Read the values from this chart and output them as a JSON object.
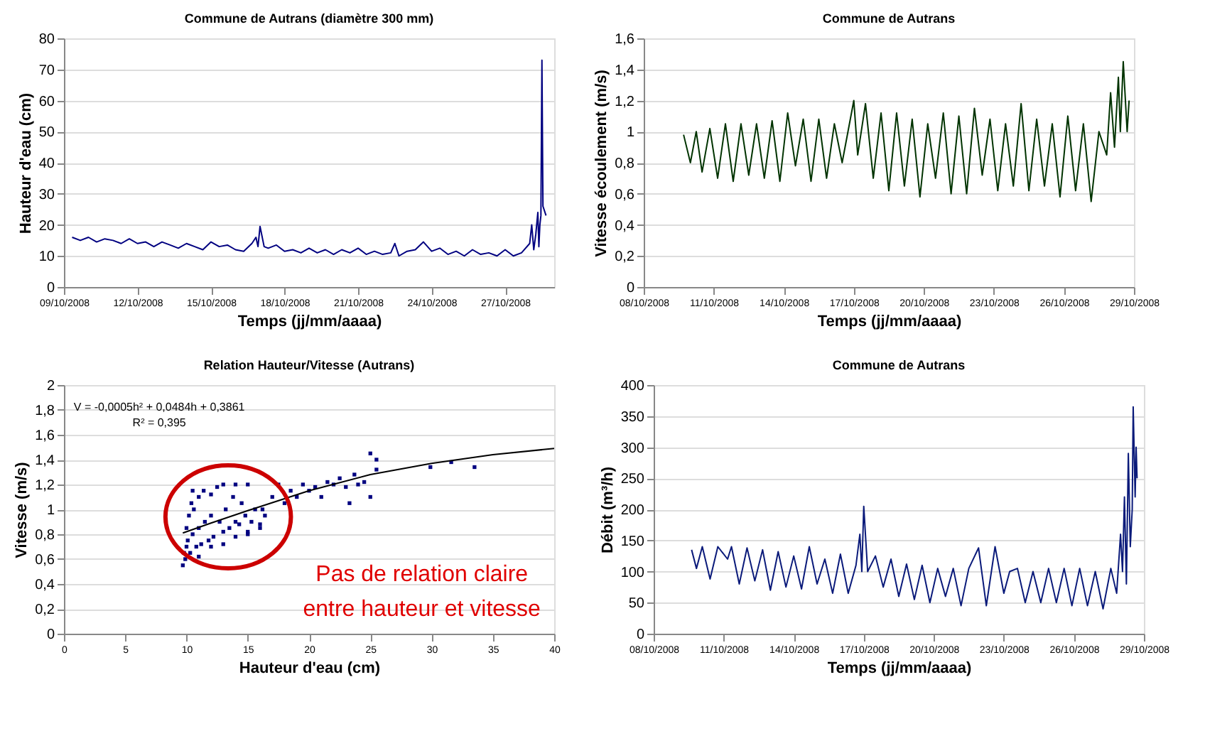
{
  "chart_data": [
    {
      "type": "line",
      "title": "Commune de Autrans (diamètre 300 mm)",
      "xlabel": "Temps (jj/mm/aaaa)",
      "ylabel": "Hauteur d'eau (cm)",
      "color": "#000080",
      "grid": "y",
      "xlim": [
        "2008-10-09",
        "2008-10-29"
      ],
      "xticks": [
        {
          "value": "2008-10-09",
          "label": "09/10/2008"
        },
        {
          "value": "2008-10-12",
          "label": "12/10/2008"
        },
        {
          "value": "2008-10-15",
          "label": "15/10/2008"
        },
        {
          "value": "2008-10-18",
          "label": "18/10/2008"
        },
        {
          "value": "2008-10-21",
          "label": "21/10/2008"
        },
        {
          "value": "2008-10-24",
          "label": "24/10/2008"
        },
        {
          "value": "2008-10-27",
          "label": "27/10/2008"
        }
      ],
      "ylim": [
        0,
        80
      ],
      "yticks": [
        0,
        10,
        20,
        30,
        40,
        50,
        60,
        70,
        80
      ],
      "x": [
        "2008-10-09T08:00",
        "2008-10-09T16:00",
        "2008-10-10T00:00",
        "2008-10-10T08:00",
        "2008-10-10T16:00",
        "2008-10-11T00:00",
        "2008-10-11T08:00",
        "2008-10-11T16:00",
        "2008-10-12T00:00",
        "2008-10-12T08:00",
        "2008-10-12T16:00",
        "2008-10-13T00:00",
        "2008-10-13T08:00",
        "2008-10-13T16:00",
        "2008-10-14T00:00",
        "2008-10-14T08:00",
        "2008-10-14T16:00",
        "2008-10-15T00:00",
        "2008-10-15T08:00",
        "2008-10-15T16:00",
        "2008-10-16T00:00",
        "2008-10-16T08:00",
        "2008-10-16T16:00",
        "2008-10-16T20:00",
        "2008-10-16T22:00",
        "2008-10-17T00:00",
        "2008-10-17T04:00",
        "2008-10-17T08:00",
        "2008-10-17T16:00",
        "2008-10-18T00:00",
        "2008-10-18T08:00",
        "2008-10-18T16:00",
        "2008-10-19T00:00",
        "2008-10-19T08:00",
        "2008-10-19T16:00",
        "2008-10-20T00:00",
        "2008-10-20T08:00",
        "2008-10-20T16:00",
        "2008-10-21T00:00",
        "2008-10-21T08:00",
        "2008-10-21T16:00",
        "2008-10-22T00:00",
        "2008-10-22T08:00",
        "2008-10-22T12:00",
        "2008-10-22T16:00",
        "2008-10-23T00:00",
        "2008-10-23T08:00",
        "2008-10-23T16:00",
        "2008-10-24T00:00",
        "2008-10-24T08:00",
        "2008-10-24T16:00",
        "2008-10-25T00:00",
        "2008-10-25T08:00",
        "2008-10-25T16:00",
        "2008-10-26T00:00",
        "2008-10-26T08:00",
        "2008-10-26T16:00",
        "2008-10-27T00:00",
        "2008-10-27T08:00",
        "2008-10-27T16:00",
        "2008-10-28T00:00",
        "2008-10-28T02:00",
        "2008-10-28T04:00",
        "2008-10-28T06:00",
        "2008-10-28T08:00",
        "2008-10-28T09:00",
        "2008-10-28T10:00",
        "2008-10-28T11:00",
        "2008-10-28T12:00",
        "2008-10-28T13:00",
        "2008-10-28T16:00"
      ],
      "values": [
        16,
        15,
        16,
        14.5,
        15.5,
        15,
        14,
        15.5,
        14,
        14.5,
        13,
        14.5,
        13.5,
        12.5,
        14,
        13,
        12,
        14.5,
        13,
        13.5,
        12,
        11.5,
        14,
        16,
        13,
        19.5,
        13,
        12.5,
        13.5,
        11.5,
        12,
        11,
        12.5,
        11,
        12,
        10.5,
        12,
        11,
        12.5,
        10.5,
        11.5,
        10.5,
        11,
        14,
        10,
        11.5,
        12,
        14.5,
        11.5,
        12.5,
        10.5,
        11.5,
        10,
        12,
        10.5,
        11,
        10,
        12,
        10,
        11,
        14,
        20,
        12,
        17,
        24,
        13,
        20,
        23,
        73,
        26,
        23
      ]
    },
    {
      "type": "line",
      "title": "Commune de Autrans",
      "xlabel": "Temps (jj/mm/aaaa)",
      "ylabel": "Vitesse écoulement (m/s)",
      "color": "#003300",
      "grid": "y",
      "xlim": [
        "2008-10-08",
        "2008-10-29"
      ],
      "xticks": [
        {
          "value": "2008-10-08",
          "label": "08/10/2008"
        },
        {
          "value": "2008-10-11",
          "label": "11/10/2008"
        },
        {
          "value": "2008-10-14",
          "label": "14/10/2008"
        },
        {
          "value": "2008-10-17",
          "label": "17/10/2008"
        },
        {
          "value": "2008-10-20",
          "label": "20/10/2008"
        },
        {
          "value": "2008-10-23",
          "label": "23/10/2008"
        },
        {
          "value": "2008-10-26",
          "label": "26/10/2008"
        },
        {
          "value": "2008-10-29",
          "label": "29/10/2008"
        }
      ],
      "ylim": [
        0,
        1.6
      ],
      "yticks": [
        0,
        {
          "value": 0.2,
          "label": "0,2"
        },
        {
          "value": 0.4,
          "label": "0,4"
        },
        {
          "value": 0.6,
          "label": "0,6"
        },
        {
          "value": 0.8,
          "label": "0,8"
        },
        1,
        {
          "value": 1.2,
          "label": "1,2"
        },
        {
          "value": 1.4,
          "label": "1,4"
        },
        {
          "value": 1.6,
          "label": "1,6"
        }
      ],
      "x": [
        "2008-10-09T17:00",
        "2008-10-10T00:00",
        "2008-10-10T06:00",
        "2008-10-10T12:00",
        "2008-10-10T20:00",
        "2008-10-11T04:00",
        "2008-10-11T12:00",
        "2008-10-11T20:00",
        "2008-10-12T04:00",
        "2008-10-12T12:00",
        "2008-10-12T20:00",
        "2008-10-13T04:00",
        "2008-10-13T12:00",
        "2008-10-13T20:00",
        "2008-10-14T04:00",
        "2008-10-14T12:00",
        "2008-10-14T20:00",
        "2008-10-15T04:00",
        "2008-10-15T12:00",
        "2008-10-15T20:00",
        "2008-10-16T04:00",
        "2008-10-16T12:00",
        "2008-10-17T00:00",
        "2008-10-17T04:00",
        "2008-10-17T12:00",
        "2008-10-17T20:00",
        "2008-10-18T04:00",
        "2008-10-18T12:00",
        "2008-10-18T20:00",
        "2008-10-19T04:00",
        "2008-10-19T12:00",
        "2008-10-19T20:00",
        "2008-10-20T04:00",
        "2008-10-20T12:00",
        "2008-10-20T20:00",
        "2008-10-21T04:00",
        "2008-10-21T12:00",
        "2008-10-21T20:00",
        "2008-10-22T04:00",
        "2008-10-22T12:00",
        "2008-10-22T20:00",
        "2008-10-23T04:00",
        "2008-10-23T12:00",
        "2008-10-23T20:00",
        "2008-10-24T04:00",
        "2008-10-24T12:00",
        "2008-10-24T20:00",
        "2008-10-25T04:00",
        "2008-10-25T12:00",
        "2008-10-25T20:00",
        "2008-10-26T04:00",
        "2008-10-26T12:00",
        "2008-10-26T20:00",
        "2008-10-27T04:00",
        "2008-10-27T12:00",
        "2008-10-27T20:00",
        "2008-10-28T00:00",
        "2008-10-28T04:00",
        "2008-10-28T08:00",
        "2008-10-28T10:00",
        "2008-10-28T13:00",
        "2008-10-28T17:00",
        "2008-10-28T19:00"
      ],
      "values": [
        0.98,
        0.8,
        1.0,
        0.74,
        1.02,
        0.7,
        1.05,
        0.68,
        1.05,
        0.72,
        1.05,
        0.7,
        1.07,
        0.68,
        1.12,
        0.78,
        1.08,
        0.68,
        1.08,
        0.7,
        1.05,
        0.8,
        1.2,
        0.85,
        1.18,
        0.7,
        1.12,
        0.62,
        1.12,
        0.65,
        1.08,
        0.58,
        1.05,
        0.7,
        1.12,
        0.6,
        1.1,
        0.6,
        1.15,
        0.72,
        1.08,
        0.62,
        1.05,
        0.65,
        1.18,
        0.62,
        1.08,
        0.65,
        1.05,
        0.58,
        1.1,
        0.62,
        1.05,
        0.55,
        1.0,
        0.85,
        1.25,
        0.9,
        1.35,
        1.0,
        1.45,
        1.0,
        1.2
      ]
    },
    {
      "type": "scatter",
      "title": "Relation Hauteur/Vitesse (Autrans)",
      "xlabel": "Hauteur d'eau (cm)",
      "ylabel": "Vitesse (m/s)",
      "grid": "y",
      "xlim": [
        0,
        40
      ],
      "xticks": [
        0,
        5,
        10,
        15,
        20,
        25,
        30,
        35,
        40
      ],
      "ylim": [
        0,
        2
      ],
      "yticks": [
        0,
        {
          "value": 0.2,
          "label": "0,2"
        },
        {
          "value": 0.4,
          "label": "0,4"
        },
        {
          "value": 0.6,
          "label": "0,6"
        },
        {
          "value": 0.8,
          "label": "0,8"
        },
        1,
        {
          "value": 1.2,
          "label": "1,2"
        },
        {
          "value": 1.4,
          "label": "1,4"
        },
        {
          "value": 1.6,
          "label": "1,6"
        },
        {
          "value": 1.8,
          "label": "1,8"
        },
        2
      ],
      "annotations": [
        "V = -0,0005h² + 0,0484h + 0,3861",
        "R² = 0,395",
        "Pas de relation claire",
        "entre  hauteur et vitesse"
      ],
      "series": [
        {
          "type": "scatter",
          "marker": "square",
          "color": "#000080",
          "x": [
            9.7,
            9.8,
            9.9,
            10,
            10,
            10.1,
            10.2,
            10.3,
            10.4,
            10.5,
            10.6,
            10.8,
            11,
            11,
            11.2,
            11.4,
            11.5,
            11.8,
            12,
            12,
            12.2,
            12.5,
            12.7,
            13,
            13,
            13.2,
            13.5,
            13.8,
            14,
            14,
            14.3,
            14.5,
            14.8,
            15,
            15,
            15.3,
            15.6,
            16,
            16.2,
            16.4,
            10.5,
            11,
            12,
            13,
            14,
            15,
            16,
            17,
            17.5,
            18,
            18.5,
            19,
            19.5,
            20,
            20.5,
            21,
            21.5,
            22,
            22.5,
            23,
            23.3,
            23.7,
            24,
            24.5,
            25,
            25,
            25.5,
            25.5,
            29.9,
            31.6,
            33.5
          ],
          "values": [
            0.55,
            0.65,
            0.6,
            0.7,
            0.85,
            0.75,
            0.95,
            0.65,
            1.05,
            0.8,
            1.0,
            0.7,
            1.1,
            0.85,
            0.72,
            1.15,
            0.9,
            0.75,
            1.12,
            0.95,
            0.78,
            1.18,
            0.9,
            0.82,
            1.2,
            1.0,
            0.85,
            1.1,
            0.9,
            1.2,
            0.88,
            1.05,
            0.95,
            0.82,
            1.2,
            0.9,
            1.0,
            0.88,
            1.0,
            0.95,
            1.15,
            0.62,
            0.7,
            0.72,
            0.78,
            0.8,
            0.85,
            1.1,
            1.2,
            1.05,
            1.15,
            1.1,
            1.2,
            1.15,
            1.18,
            1.1,
            1.22,
            1.2,
            1.25,
            1.18,
            1.05,
            1.28,
            1.2,
            1.22,
            1.45,
            1.1,
            1.4,
            1.32,
            1.34,
            1.38,
            1.34
          ]
        },
        {
          "type": "line",
          "color": "#000000",
          "x": [
            9.7,
            12,
            15,
            20,
            25,
            30,
            35,
            40
          ],
          "values": [
            0.81,
            0.89,
            0.99,
            1.15,
            1.28,
            1.37,
            1.44,
            1.49
          ]
        }
      ]
    },
    {
      "type": "line",
      "title": "Commune de Autrans",
      "xlabel": "Temps (jj/mm/aaaa)",
      "ylabel": "Débit (m³/h)",
      "color": "#0a1a7a",
      "grid": "y",
      "xlim": [
        "2008-10-08",
        "2008-10-29"
      ],
      "xticks": [
        {
          "value": "2008-10-08",
          "label": "08/10/2008"
        },
        {
          "value": "2008-10-11",
          "label": "11/10/2008"
        },
        {
          "value": "2008-10-14",
          "label": "14/10/2008"
        },
        {
          "value": "2008-10-17",
          "label": "17/10/2008"
        },
        {
          "value": "2008-10-20",
          "label": "20/10/2008"
        },
        {
          "value": "2008-10-23",
          "label": "23/10/2008"
        },
        {
          "value": "2008-10-26",
          "label": "26/10/2008"
        },
        {
          "value": "2008-10-29",
          "label": "29/10/2008"
        }
      ],
      "ylim": [
        0,
        400
      ],
      "yticks": [
        0,
        50,
        100,
        150,
        200,
        250,
        300,
        350,
        400
      ],
      "x": [
        "2008-10-09T15:00",
        "2008-10-09T20:00",
        "2008-10-10T02:00",
        "2008-10-10T10:00",
        "2008-10-10T18:00",
        "2008-10-11T04:00",
        "2008-10-11T08:00",
        "2008-10-11T16:00",
        "2008-10-12T00:00",
        "2008-10-12T08:00",
        "2008-10-12T16:00",
        "2008-10-13T00:00",
        "2008-10-13T08:00",
        "2008-10-13T16:00",
        "2008-10-14T00:00",
        "2008-10-14T08:00",
        "2008-10-14T16:00",
        "2008-10-15T00:00",
        "2008-10-15T08:00",
        "2008-10-15T16:00",
        "2008-10-16T00:00",
        "2008-10-16T08:00",
        "2008-10-16T16:00",
        "2008-10-16T20:00",
        "2008-10-16T22:00",
        "2008-10-17T00:00",
        "2008-10-17T04:00",
        "2008-10-17T12:00",
        "2008-10-17T20:00",
        "2008-10-18T04:00",
        "2008-10-18T12:00",
        "2008-10-18T20:00",
        "2008-10-19T04:00",
        "2008-10-19T12:00",
        "2008-10-19T20:00",
        "2008-10-20T04:00",
        "2008-10-20T12:00",
        "2008-10-20T20:00",
        "2008-10-21T04:00",
        "2008-10-21T12:00",
        "2008-10-21T22:00",
        "2008-10-22T06:00",
        "2008-10-22T15:00",
        "2008-10-23T00:00",
        "2008-10-23T06:00",
        "2008-10-23T14:00",
        "2008-10-23T22:00",
        "2008-10-24T06:00",
        "2008-10-24T14:00",
        "2008-10-24T22:00",
        "2008-10-25T06:00",
        "2008-10-25T14:00",
        "2008-10-25T22:00",
        "2008-10-26T06:00",
        "2008-10-26T14:00",
        "2008-10-26T22:00",
        "2008-10-27T06:00",
        "2008-10-27T14:00",
        "2008-10-27T20:00",
        "2008-10-28T00:00",
        "2008-10-28T02:00",
        "2008-10-28T04:00",
        "2008-10-28T06:00",
        "2008-10-28T08:00",
        "2008-10-28T10:00",
        "2008-10-28T12:00",
        "2008-10-28T13:00",
        "2008-10-28T15:00",
        "2008-10-28T16:00",
        "2008-10-28T17:00"
      ],
      "values": [
        135,
        105,
        140,
        88,
        140,
        120,
        140,
        80,
        138,
        85,
        135,
        70,
        132,
        75,
        125,
        72,
        140,
        80,
        120,
        65,
        128,
        65,
        110,
        160,
        100,
        205,
        100,
        125,
        75,
        120,
        60,
        112,
        55,
        110,
        50,
        105,
        60,
        105,
        45,
        105,
        138,
        45,
        140,
        65,
        100,
        105,
        50,
        100,
        50,
        105,
        50,
        105,
        45,
        105,
        45,
        100,
        40,
        105,
        65,
        160,
        100,
        220,
        80,
        290,
        140,
        200,
        365,
        220,
        300,
        250
      ]
    }
  ]
}
